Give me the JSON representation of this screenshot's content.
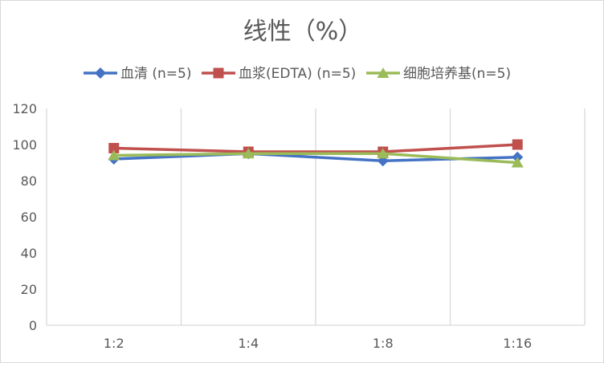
{
  "chart_data": {
    "type": "line",
    "title": "线性（%）",
    "categories": [
      "1:2",
      "1:4",
      "1:8",
      "1:16"
    ],
    "ylim": [
      0,
      120
    ],
    "yticks": [
      0,
      20,
      40,
      60,
      80,
      100,
      120
    ],
    "grid": "vertical",
    "legend": "top",
    "series": [
      {
        "name": "血清 (n=5)",
        "color": "#4472C4",
        "marker": "diamond",
        "values": [
          92,
          95,
          91,
          93
        ]
      },
      {
        "name": "血浆(EDTA) (n=5)",
        "color": "#C0504D",
        "marker": "square",
        "values": [
          98,
          96,
          96,
          100
        ]
      },
      {
        "name": "细胞培养基(n=5)",
        "color": "#9BBB59",
        "marker": "triangle",
        "values": [
          94,
          95,
          95,
          90
        ]
      }
    ]
  }
}
